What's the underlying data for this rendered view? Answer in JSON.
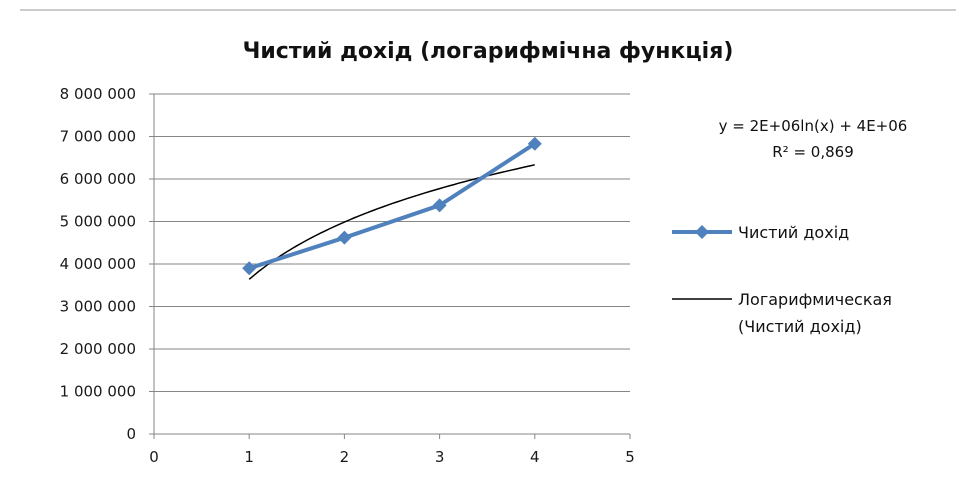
{
  "chart_data": {
    "type": "line",
    "title": "Чистий дохід (логарифмічна функція)",
    "xlabel": "",
    "ylabel": "",
    "xlim": [
      0,
      5
    ],
    "ylim": [
      0,
      8000000
    ],
    "x_ticks": [
      0,
      1,
      2,
      3,
      4,
      5
    ],
    "y_ticks": [
      0,
      1000000,
      2000000,
      3000000,
      4000000,
      5000000,
      6000000,
      7000000,
      8000000
    ],
    "y_tick_labels": [
      "0",
      "1 000 000",
      "2 000 000",
      "3 000 000",
      "4 000 000",
      "5 000 000",
      "6 000 000",
      "7 000 000",
      "8 000 000"
    ],
    "x_tick_labels": [
      "0",
      "1",
      "2",
      "3",
      "4",
      "5"
    ],
    "grid": "horizontal",
    "legend_position": "right",
    "series": [
      {
        "name": "Чистий дохід",
        "x": [
          1,
          2,
          3,
          4
        ],
        "values": [
          3900000,
          4620000,
          5380000,
          6830000
        ],
        "color": "#4f81bd",
        "marker": "diamond"
      }
    ],
    "trendline": {
      "name_line1": "Логарифмическая",
      "name_line2": "(Чистий дохід)",
      "type": "logarithmic",
      "a": 1943000,
      "b": 3640000,
      "x_range": [
        1,
        4
      ],
      "color": "#000000",
      "equation": "y = 2E+06ln(x) + 4E+06",
      "r_squared": "R² = 0,869"
    }
  }
}
